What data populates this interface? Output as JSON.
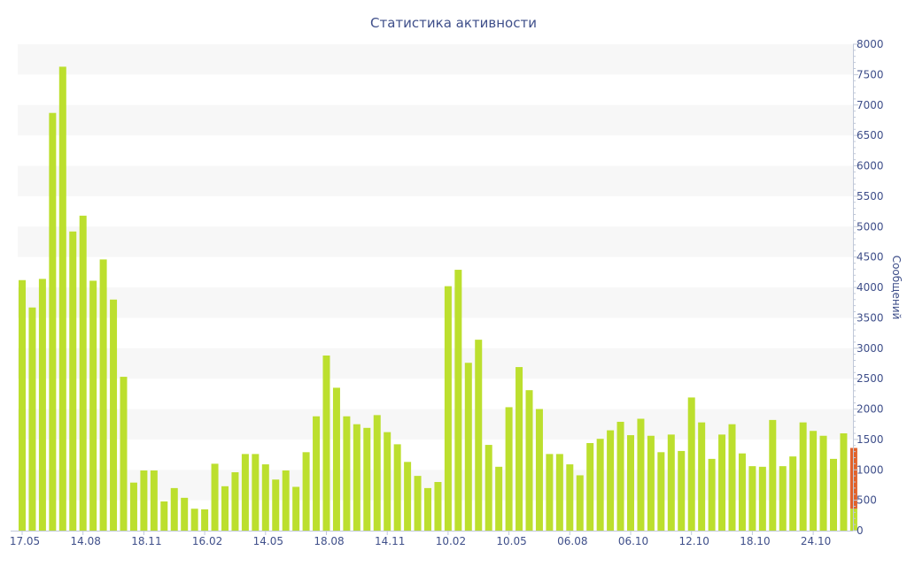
{
  "chart_data": {
    "type": "bar",
    "title": "Статистика активности",
    "ylabel": "Сообщений",
    "xlabel": "",
    "ylim": [
      0,
      8000
    ],
    "yticks": [
      0,
      500,
      1000,
      1500,
      2000,
      2500,
      3000,
      3500,
      4000,
      4500,
      5000,
      5500,
      6000,
      6500,
      7000,
      7500,
      8000
    ],
    "x_tick_labels": [
      {
        "label": "17.05",
        "index": 0
      },
      {
        "label": "14.08",
        "index": 6
      },
      {
        "label": "18.11",
        "index": 12
      },
      {
        "label": "16.02",
        "index": 18
      },
      {
        "label": "14.05",
        "index": 24
      },
      {
        "label": "18.08",
        "index": 30
      },
      {
        "label": "14.11",
        "index": 36
      },
      {
        "label": "10.02",
        "index": 42
      },
      {
        "label": "10.05",
        "index": 48
      },
      {
        "label": "06.08",
        "index": 54
      },
      {
        "label": "06.10",
        "index": 60
      },
      {
        "label": "12.10",
        "index": 66
      },
      {
        "label": "18.10",
        "index": 72
      },
      {
        "label": "24.10",
        "index": 78
      }
    ],
    "y_axis_position": "right",
    "grid": "alternating horizontal bands",
    "bar_color": "#bcdf2e",
    "highlight_color": "#e0622c",
    "values": [
      4120,
      3670,
      4140,
      6870,
      7630,
      4920,
      5180,
      4110,
      4460,
      3800,
      2530,
      790,
      990,
      990,
      480,
      700,
      540,
      360,
      350,
      1100,
      730,
      960,
      1260,
      1260,
      1090,
      840,
      990,
      720,
      1290,
      1880,
      2880,
      2350,
      1880,
      1750,
      1690,
      1900,
      1620,
      1420,
      1130,
      900,
      700,
      800,
      4020,
      4290,
      2760,
      3140,
      1410,
      1050,
      2030,
      2690,
      2310,
      2000,
      1260,
      1260,
      1090,
      910,
      1440,
      1510,
      1650,
      1790,
      1570,
      1840,
      1560,
      1290,
      1580,
      1310,
      2190,
      1780,
      1180,
      1580,
      1750,
      1270,
      1060,
      1050,
      1820,
      1060,
      1220,
      1780,
      1640,
      1560,
      1180,
      1600,
      360
    ],
    "highlight": {
      "index": 82,
      "base": 360,
      "top": 1360
    }
  }
}
